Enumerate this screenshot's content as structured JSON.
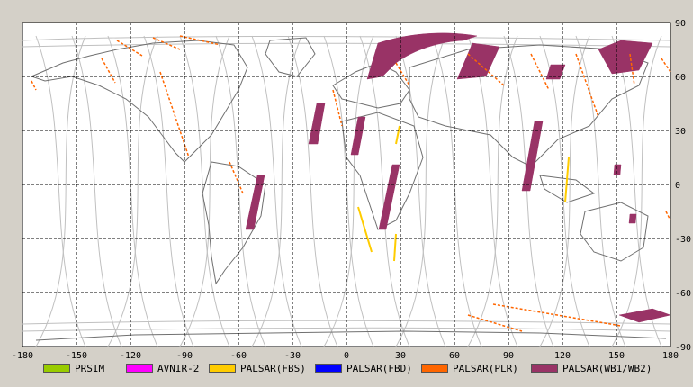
{
  "map": {
    "lon_ticks": [
      -180,
      -150,
      -120,
      -90,
      -60,
      -30,
      0,
      30,
      60,
      90,
      120,
      150,
      180
    ],
    "lat_ticks": [
      90,
      60,
      30,
      0,
      -30,
      -60,
      -90
    ]
  },
  "legend": [
    {
      "label": "PRSIM",
      "color": "#99cc00"
    },
    {
      "label": "AVNIR-2",
      "color": "#ff00ff"
    },
    {
      "label": "PALSAR(FBS)",
      "color": "#ffcc00"
    },
    {
      "label": "PALSAR(FBD)",
      "color": "#0000ff"
    },
    {
      "label": "PALSAR(PLR)",
      "color": "#ff6600"
    },
    {
      "label": "PALSAR(WB1/WB2)",
      "color": "#993366"
    }
  ],
  "colors": {
    "background": "#d4d0c8",
    "map_fill": "#ffffff",
    "coastline": "#707070",
    "orbit_track": "#c0c0c0",
    "grid": "#000000"
  }
}
